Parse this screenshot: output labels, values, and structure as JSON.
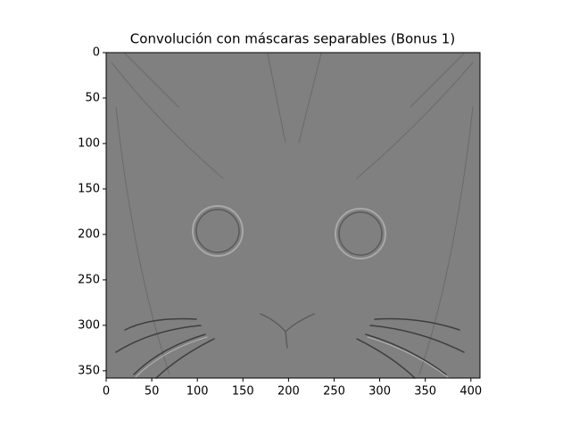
{
  "chart_data": {
    "type": "image",
    "title": "Convolución con máscaras separables (Bonus 1)",
    "xlim": [
      0,
      410
    ],
    "xticks": [
      0,
      50,
      100,
      150,
      200,
      250,
      300,
      350,
      400
    ],
    "ylim": [
      358,
      0
    ],
    "yticks": [
      0,
      50,
      100,
      150,
      200,
      250,
      300,
      350
    ]
  }
}
